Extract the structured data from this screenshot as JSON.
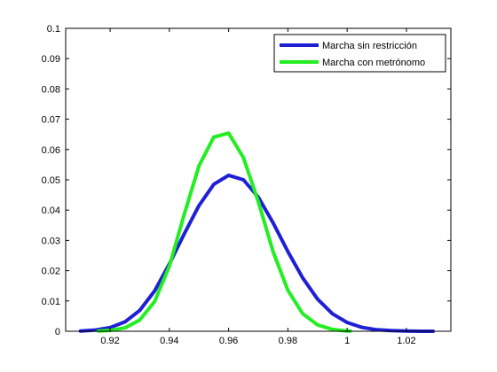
{
  "chart_data": {
    "type": "line",
    "title": "",
    "xlabel": "",
    "ylabel": "",
    "xlim": [
      0.905,
      1.035
    ],
    "ylim": [
      0,
      0.1
    ],
    "x_ticks": [
      0.92,
      0.94,
      0.96,
      0.98,
      1.0,
      1.02
    ],
    "x_tick_labels": [
      "0.92",
      "0.94",
      "0.96",
      "0.98",
      "1",
      "1.02"
    ],
    "y_ticks": [
      0,
      0.01,
      0.02,
      0.03,
      0.04,
      0.05,
      0.06,
      0.07,
      0.08,
      0.09,
      0.1
    ],
    "y_tick_labels": [
      "0",
      "0.01",
      "0.02",
      "0.03",
      "0.04",
      "0.05",
      "0.06",
      "0.07",
      "0.08",
      "0.09",
      "0.1"
    ],
    "grid": false,
    "legend": {
      "position": "top-right"
    },
    "series": [
      {
        "name": "Marcha sin restricción",
        "color": "#1f1fd6",
        "x": [
          0.91,
          0.915,
          0.92,
          0.925,
          0.93,
          0.935,
          0.94,
          0.945,
          0.95,
          0.955,
          0.96,
          0.965,
          0.97,
          0.975,
          0.98,
          0.985,
          0.99,
          0.995,
          1.0,
          1.005,
          1.01,
          1.015,
          1.02,
          1.025,
          1.029
        ],
        "y": [
          0.0001,
          0.0004,
          0.0012,
          0.0031,
          0.0069,
          0.0133,
          0.0222,
          0.0321,
          0.0415,
          0.0485,
          0.0515,
          0.05,
          0.0443,
          0.0358,
          0.0263,
          0.0176,
          0.0106,
          0.0058,
          0.0029,
          0.0013,
          0.0005,
          0.0002,
          0.0001,
          0.0,
          0.0
        ]
      },
      {
        "name": "Marcha con metrónomo",
        "color": "#22ee22",
        "x": [
          0.916,
          0.92,
          0.925,
          0.93,
          0.935,
          0.94,
          0.945,
          0.95,
          0.955,
          0.96,
          0.965,
          0.97,
          0.975,
          0.98,
          0.985,
          0.99,
          0.995,
          1.0,
          1.001
        ],
        "y": [
          0.0001,
          0.0003,
          0.0011,
          0.0037,
          0.0098,
          0.0215,
          0.0385,
          0.0546,
          0.0641,
          0.0654,
          0.0573,
          0.0428,
          0.0263,
          0.0135,
          0.0058,
          0.0021,
          0.0006,
          0.0001,
          0.0001
        ]
      }
    ]
  }
}
